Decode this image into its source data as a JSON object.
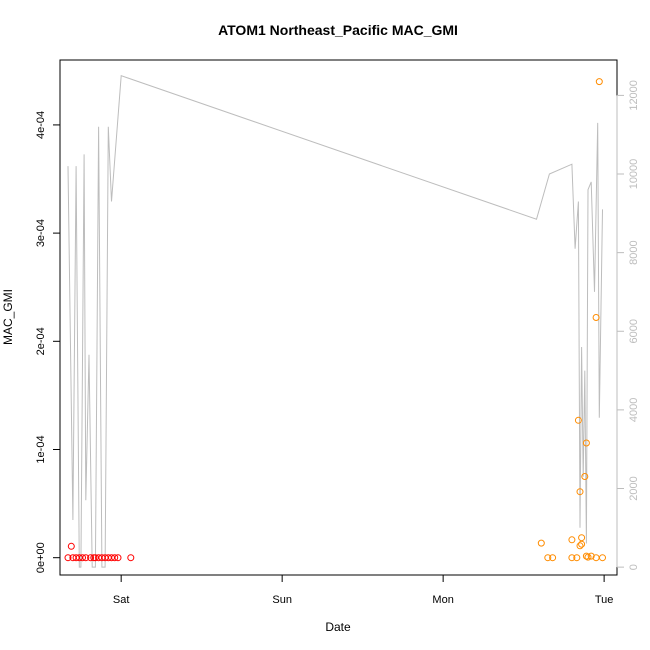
{
  "chart_data": {
    "type": "scatter",
    "title": "ATOM1 Northeast_Pacific MAC_GMI",
    "xlabel": "Date",
    "ylabel": "MAC_GMI",
    "x_axis": {
      "unit": "days",
      "ticks": [
        {
          "value": 1.0,
          "label": "Sat"
        },
        {
          "value": 2.0,
          "label": "Sun"
        },
        {
          "value": 3.0,
          "label": "Mon"
        },
        {
          "value": 4.0,
          "label": "Tue"
        }
      ],
      "xlim": [
        0.62,
        4.08
      ]
    },
    "y_axis_left": {
      "ylim": [
        -1.6e-05,
        0.00046
      ],
      "ticks": [
        {
          "value": 0,
          "label": "0e+00"
        },
        {
          "value": 0.0001,
          "label": "1e-04"
        },
        {
          "value": 0.0002,
          "label": "2e-04"
        },
        {
          "value": 0.0003,
          "label": "3e-04"
        },
        {
          "value": 0.0004,
          "label": "4e-04"
        }
      ]
    },
    "y_axis_right": {
      "color": "#bdbdbd",
      "ylim": [
        -200,
        12900
      ],
      "ticks": [
        {
          "value": 0,
          "label": "0"
        },
        {
          "value": 2000,
          "label": "2000"
        },
        {
          "value": 4000,
          "label": "4000"
        },
        {
          "value": 6000,
          "label": "6000"
        },
        {
          "value": 8000,
          "label": "8000"
        },
        {
          "value": 10000,
          "label": "10000"
        },
        {
          "value": 12000,
          "label": "12000"
        }
      ]
    },
    "series": [
      {
        "color": "#ff0000",
        "marker": "open-circle",
        "points": [
          {
            "x": 0.67,
            "y": 0.0
          },
          {
            "x": 0.69,
            "y": 1.05e-05
          },
          {
            "x": 0.7,
            "y": 0.0
          },
          {
            "x": 0.72,
            "y": 0.0
          },
          {
            "x": 0.74,
            "y": 0.0
          },
          {
            "x": 0.76,
            "y": 0.0
          },
          {
            "x": 0.78,
            "y": 0.0
          },
          {
            "x": 0.81,
            "y": 0.0
          },
          {
            "x": 0.83,
            "y": 0.0
          },
          {
            "x": 0.84,
            "y": 0.0
          },
          {
            "x": 0.86,
            "y": 0.0
          },
          {
            "x": 0.88,
            "y": 0.0
          },
          {
            "x": 0.9,
            "y": 0.0
          },
          {
            "x": 0.92,
            "y": 0.0
          },
          {
            "x": 0.94,
            "y": 0.0
          },
          {
            "x": 0.96,
            "y": 0.0
          },
          {
            "x": 0.98,
            "y": 0.0
          },
          {
            "x": 1.06,
            "y": 0.0
          }
        ]
      },
      {
        "color": "#ff8c00",
        "marker": "open-circle",
        "points": [
          {
            "x": 3.61,
            "y": 1.35e-05
          },
          {
            "x": 3.65,
            "y": 0.0
          },
          {
            "x": 3.68,
            "y": 0.0
          },
          {
            "x": 3.8,
            "y": 1.65e-05
          },
          {
            "x": 3.8,
            "y": 0.0
          },
          {
            "x": 3.83,
            "y": 0.0
          },
          {
            "x": 3.84,
            "y": 0.000127
          },
          {
            "x": 3.85,
            "y": 6.1e-05
          },
          {
            "x": 3.85,
            "y": 1.1e-05
          },
          {
            "x": 3.86,
            "y": 1.85e-05
          },
          {
            "x": 3.86,
            "y": 1.25e-05
          },
          {
            "x": 3.88,
            "y": 7.5e-05
          },
          {
            "x": 3.89,
            "y": 0.000106
          },
          {
            "x": 3.89,
            "y": 1.5e-06
          },
          {
            "x": 3.9,
            "y": 5e-07
          },
          {
            "x": 3.92,
            "y": 1.5e-06
          },
          {
            "x": 3.95,
            "y": 0.000222
          },
          {
            "x": 3.95,
            "y": 0.0
          },
          {
            "x": 3.97,
            "y": 0.00044
          },
          {
            "x": 3.99,
            "y": 0.0
          }
        ]
      },
      {
        "axis": "right",
        "type": "line",
        "color": "#bdbdbd",
        "points": [
          {
            "x": 0.67,
            "y": 10200
          },
          {
            "x": 0.7,
            "y": 1200
          },
          {
            "x": 0.72,
            "y": 10200
          },
          {
            "x": 0.74,
            "y": 0
          },
          {
            "x": 0.75,
            "y": 0
          },
          {
            "x": 0.77,
            "y": 10500
          },
          {
            "x": 0.78,
            "y": 1700
          },
          {
            "x": 0.8,
            "y": 5400
          },
          {
            "x": 0.82,
            "y": 0
          },
          {
            "x": 0.84,
            "y": 0
          },
          {
            "x": 0.86,
            "y": 11200
          },
          {
            "x": 0.88,
            "y": 0
          },
          {
            "x": 0.9,
            "y": 0
          },
          {
            "x": 0.92,
            "y": 11200
          },
          {
            "x": 0.94,
            "y": 9300
          },
          {
            "x": 1.0,
            "y": 12500
          },
          {
            "x": 3.58,
            "y": 8850
          },
          {
            "x": 3.66,
            "y": 10000
          },
          {
            "x": 3.8,
            "y": 10250
          },
          {
            "x": 3.82,
            "y": 8100
          },
          {
            "x": 3.84,
            "y": 9300
          },
          {
            "x": 3.85,
            "y": 1000
          },
          {
            "x": 3.86,
            "y": 5600
          },
          {
            "x": 3.87,
            "y": 2300
          },
          {
            "x": 3.88,
            "y": 5000
          },
          {
            "x": 3.89,
            "y": 600
          },
          {
            "x": 3.9,
            "y": 9600
          },
          {
            "x": 3.92,
            "y": 9800
          },
          {
            "x": 3.94,
            "y": 7000
          },
          {
            "x": 3.96,
            "y": 11300
          },
          {
            "x": 3.97,
            "y": 3800
          },
          {
            "x": 3.99,
            "y": 9100
          }
        ]
      }
    ]
  }
}
